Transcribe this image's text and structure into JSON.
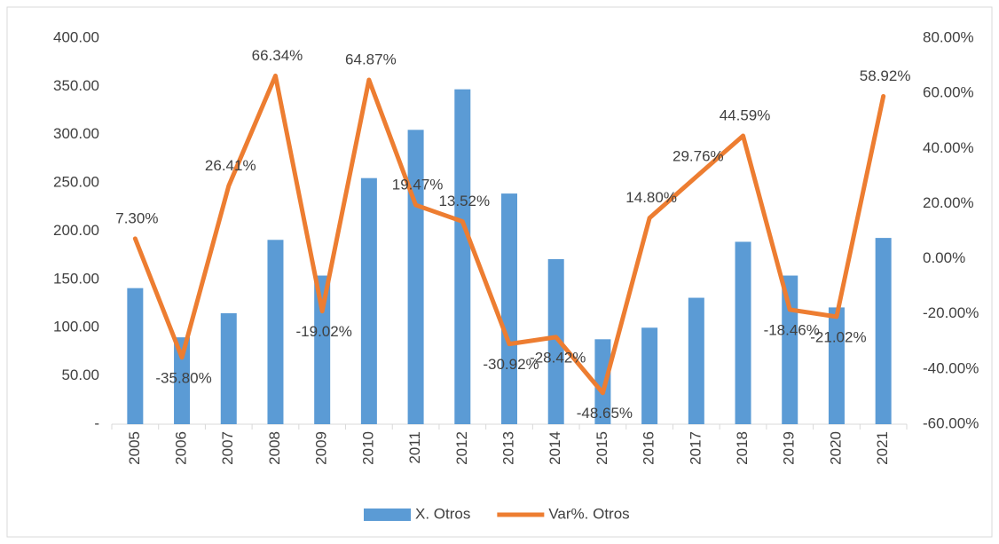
{
  "chart_data": {
    "type": "bar-line",
    "categories": [
      "2005",
      "2006",
      "2007",
      "2008",
      "2009",
      "2010",
      "2011",
      "2012",
      "2013",
      "2014",
      "2015",
      "2016",
      "2017",
      "2018",
      "2019",
      "2020",
      "2021"
    ],
    "series": [
      {
        "name": "X. Otros",
        "type": "bar",
        "color": "#5b9bd5",
        "values": [
          141,
          90,
          115,
          191,
          154,
          255,
          305,
          347,
          239,
          171,
          88,
          100,
          131,
          189,
          154,
          121,
          193
        ]
      },
      {
        "name": "Var%. Otros",
        "type": "line",
        "axis": "y2",
        "color": "#ed7d31",
        "values": [
          7.3,
          -35.8,
          26.41,
          66.34,
          -19.02,
          64.87,
          19.47,
          13.52,
          -30.92,
          -28.42,
          -48.65,
          14.8,
          29.76,
          44.59,
          -18.46,
          -21.02,
          58.92
        ],
        "value_labels": [
          "7.30%",
          "-35.80%",
          "26.41%",
          "66.34%",
          "-19.02%",
          "64.87%",
          "19.47%",
          "13.52%",
          "-30.92%",
          "-28.42%",
          "-48.65%",
          "14.80%",
          "29.76%",
          "44.59%",
          "-18.46%",
          "-21.02%",
          "58.92%"
        ]
      }
    ],
    "ylim": [
      0,
      400
    ],
    "yticks": [
      {
        "value": 0,
        "label": "-"
      },
      {
        "value": 50,
        "label": "50.00"
      },
      {
        "value": 100,
        "label": "100.00"
      },
      {
        "value": 150,
        "label": "150.00"
      },
      {
        "value": 200,
        "label": "200.00"
      },
      {
        "value": 250,
        "label": "250.00"
      },
      {
        "value": 300,
        "label": "300.00"
      },
      {
        "value": 350,
        "label": "350.00"
      },
      {
        "value": 400,
        "label": "400.00"
      }
    ],
    "y2lim": [
      -60,
      80
    ],
    "y2ticks": [
      {
        "value": -60,
        "label": "-60.00%"
      },
      {
        "value": -40,
        "label": "-40.00%"
      },
      {
        "value": -20,
        "label": "-20.00%"
      },
      {
        "value": 0,
        "label": "0.00%"
      },
      {
        "value": 20,
        "label": "20.00%"
      },
      {
        "value": 40,
        "label": "40.00%"
      },
      {
        "value": 60,
        "label": "60.00%"
      },
      {
        "value": 80,
        "label": "80.00%"
      }
    ],
    "grid": false,
    "legend": "bottom"
  }
}
